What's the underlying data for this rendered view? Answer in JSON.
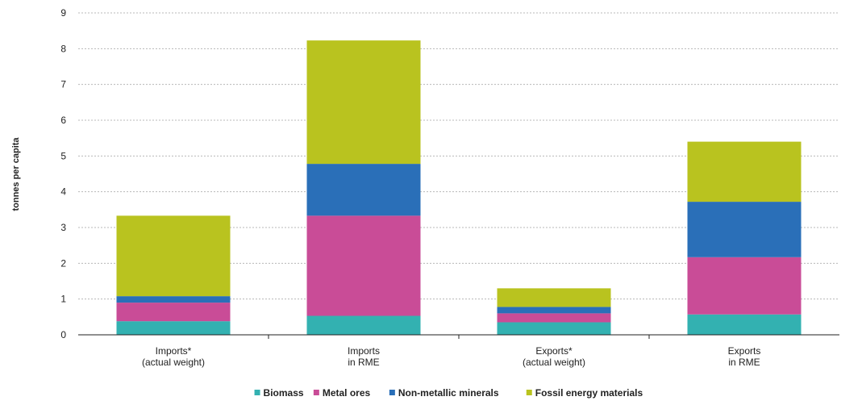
{
  "chart_data": {
    "type": "bar",
    "stacked": true,
    "categories": [
      [
        "Imports*",
        "(actual weight)"
      ],
      [
        "Imports",
        "in RME"
      ],
      [
        "Exports*",
        "(actual weight)"
      ],
      [
        "Exports",
        "in RME"
      ]
    ],
    "series": [
      {
        "name": "Biomass",
        "color": "#33b1b1",
        "values": [
          0.38,
          0.53,
          0.35,
          0.57
        ]
      },
      {
        "name": "Metal ores",
        "color": "#c94c97",
        "values": [
          0.52,
          2.8,
          0.25,
          1.6
        ]
      },
      {
        "name": "Non-metallic minerals",
        "color": "#2a6fb8",
        "values": [
          0.18,
          1.45,
          0.18,
          1.55
        ]
      },
      {
        "name": "Fossil energy materials",
        "color": "#b9c31f",
        "values": [
          2.25,
          3.45,
          0.52,
          1.68
        ]
      }
    ],
    "ylabel": "tonnes per capita",
    "ylim": [
      0,
      9
    ],
    "yticks": [
      "0",
      "1",
      "2",
      "3",
      "4",
      "5",
      "6",
      "7",
      "8",
      "9"
    ],
    "grid": true,
    "legend_position": "bottom"
  }
}
